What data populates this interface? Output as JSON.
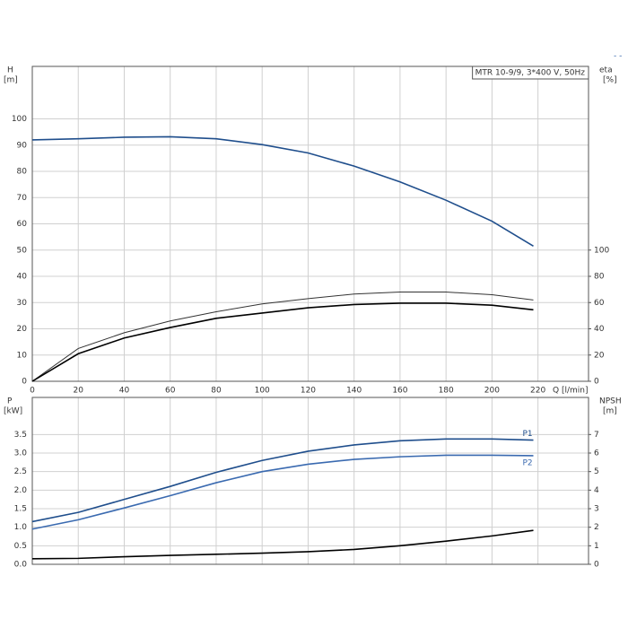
{
  "chart_data": [
    {
      "type": "line",
      "title": "MTR 10-9/9, 3*400 V, 50Hz",
      "ylabel": "H",
      "yunit": "[m]",
      "y2label": "eta",
      "y2unit": "[%]",
      "xlabel": "Q [l/min]",
      "x": [
        0,
        20,
        40,
        60,
        80,
        100,
        120,
        140,
        160,
        180,
        200,
        218
      ],
      "xlim": [
        0,
        242
      ],
      "xticks": [
        0,
        20,
        40,
        60,
        80,
        100,
        120,
        140,
        160,
        180,
        200,
        220
      ],
      "ylim": [
        0,
        120
      ],
      "yticks": [
        0,
        10,
        20,
        30,
        40,
        50,
        60,
        70,
        80,
        90,
        100
      ],
      "y2lim": [
        0,
        240
      ],
      "y2ticks": [
        0,
        20,
        40,
        60,
        80,
        100
      ],
      "grid": true,
      "series": [
        {
          "color": "#1f4e8c",
          "values": [
            92,
            92.4,
            93,
            93.2,
            92.4,
            90.2,
            87,
            82,
            76,
            69,
            61,
            51.5
          ]
        },
        {
          "color": "#333333",
          "axis": "y2",
          "values": [
            0,
            25,
            37,
            46,
            53,
            59,
            63,
            66.5,
            68,
            68,
            66,
            62
          ]
        },
        {
          "color": "#000000",
          "axis": "y2",
          "values": [
            0,
            21,
            33,
            41,
            48,
            52,
            56,
            58.5,
            59.5,
            59.5,
            58,
            54.5
          ]
        }
      ]
    },
    {
      "type": "line",
      "ylabel": "P",
      "yunit": "[kW]",
      "y2label": "NPSH",
      "y2unit": "[m]",
      "x": [
        0,
        20,
        40,
        60,
        80,
        100,
        120,
        140,
        160,
        180,
        200,
        218
      ],
      "xlim": [
        0,
        242
      ],
      "ylim": [
        0,
        4.5
      ],
      "yticks": [
        {
          "value": 0,
          "label": "0.0"
        },
        0.5,
        {
          "value": 1,
          "label": "1.0"
        },
        1.5,
        {
          "value": 2,
          "label": "2.0"
        },
        2.5,
        {
          "value": 3,
          "label": "3.0"
        },
        3.5
      ],
      "y2lim": [
        0,
        9
      ],
      "y2ticks": [
        0,
        1,
        2,
        3,
        4,
        5,
        6,
        7
      ],
      "grid": true,
      "series": [
        {
          "name": "P1",
          "color": "#1f4e8c",
          "values": [
            1.15,
            1.4,
            1.75,
            2.1,
            2.48,
            2.8,
            3.05,
            3.22,
            3.33,
            3.38,
            3.38,
            3.35
          ]
        },
        {
          "name": "P2",
          "color": "#3a6ab0",
          "values": [
            0.95,
            1.2,
            1.52,
            1.85,
            2.2,
            2.5,
            2.7,
            2.83,
            2.9,
            2.94,
            2.94,
            2.93
          ]
        },
        {
          "color": "#000000",
          "axis": "y2",
          "values": [
            0.3,
            0.32,
            0.41,
            0.48,
            0.54,
            0.6,
            0.68,
            0.8,
            1.0,
            1.25,
            1.53,
            1.83
          ]
        }
      ]
    }
  ]
}
